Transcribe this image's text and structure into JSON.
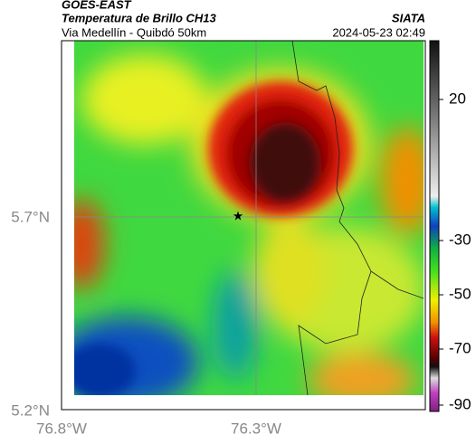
{
  "header": {
    "satellite": "GOES-EAST",
    "product": "Temperatura de Brillo CH13",
    "region": "Via Medellín - Quibdó 50km",
    "source": "SIATA",
    "timestamp": "2024-05-23 02:49"
  },
  "map": {
    "lat_labels": [
      "5.7°N",
      "5.2°N"
    ],
    "lon_labels": [
      "76.8°W",
      "76.3°W"
    ]
  },
  "colorbar": {
    "tick_labels": [
      "20",
      "-30",
      "-50",
      "-70",
      "-90"
    ]
  }
}
